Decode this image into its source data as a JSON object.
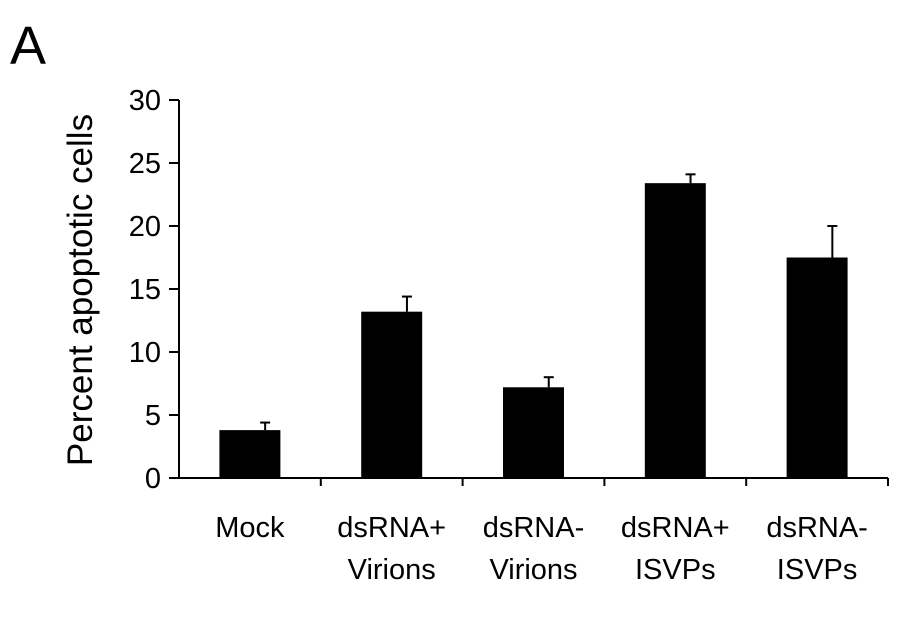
{
  "panel_label": "A",
  "chart_data": {
    "type": "bar",
    "title": "",
    "xlabel": "",
    "ylabel": "Percent apoptotic cells",
    "ylim": [
      0,
      30
    ],
    "yticks": [
      0,
      5,
      10,
      15,
      20,
      25,
      30
    ],
    "grid": false,
    "categories": [
      [
        "Mock"
      ],
      [
        "dsRNA+",
        "Virions"
      ],
      [
        "dsRNA-",
        "Virions"
      ],
      [
        "dsRNA+",
        "ISVPs"
      ],
      [
        "dsRNA-",
        "ISVPs"
      ]
    ],
    "values": [
      3.8,
      13.2,
      7.2,
      23.4,
      17.5
    ],
    "errors": [
      0.6,
      1.2,
      0.8,
      0.7,
      2.5
    ],
    "colors": {
      "bar": "#000000",
      "axis": "#000000"
    }
  }
}
